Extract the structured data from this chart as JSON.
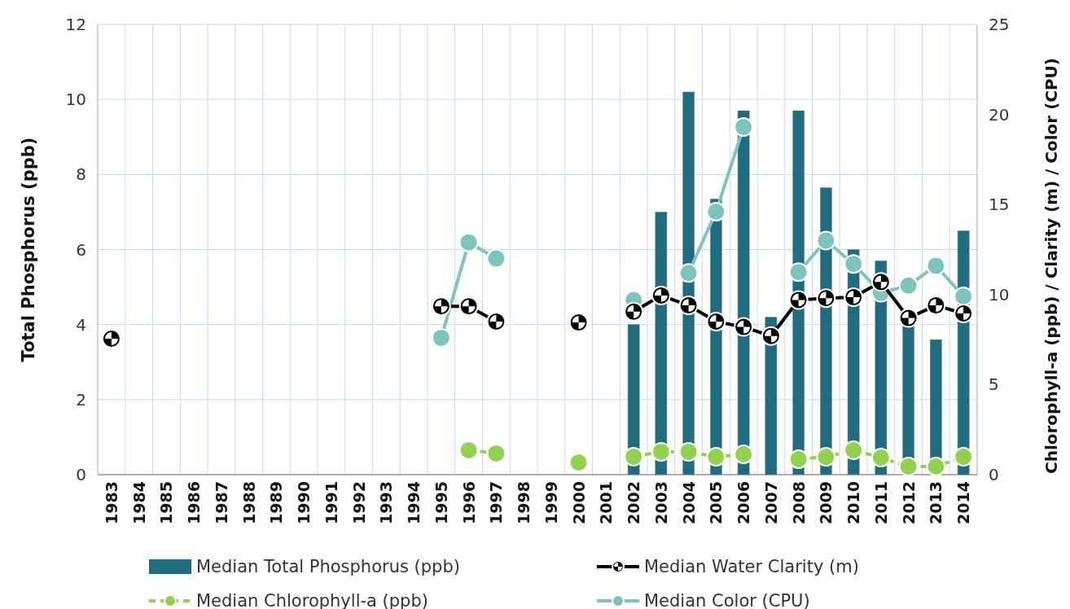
{
  "chart_data": {
    "type": "bar",
    "categories": [
      "1983",
      "1984",
      "1985",
      "1986",
      "1987",
      "1988",
      "1989",
      "1990",
      "1991",
      "1992",
      "1993",
      "1994",
      "1995",
      "1996",
      "1997",
      "1998",
      "1999",
      "2000",
      "2001",
      "2002",
      "2003",
      "2004",
      "2005",
      "2006",
      "2007",
      "2008",
      "2009",
      "2010",
      "2011",
      "2012",
      "2013",
      "2014"
    ],
    "ylabel": "Total Phosphorus (ppb)",
    "y2label": "Chlorophyll-a (ppb) / Clarity (m) / Color (CPU)",
    "ylim": [
      0,
      12
    ],
    "yticks": [
      0,
      2,
      4,
      6,
      8,
      10,
      12
    ],
    "y2lim": [
      0,
      25
    ],
    "y2ticks": [
      0,
      5,
      10,
      15,
      20,
      25
    ],
    "grid": true,
    "legend": "bottom",
    "marker": "circle",
    "series": [
      {
        "name": "Median Total Phosphorus (ppb)",
        "color": "#1f6b80",
        "values": [
          null,
          null,
          null,
          null,
          null,
          null,
          null,
          null,
          null,
          null,
          null,
          null,
          null,
          null,
          null,
          null,
          null,
          null,
          null,
          4.0,
          7.0,
          10.2,
          7.35,
          9.7,
          4.2,
          9.7,
          7.65,
          6.0,
          5.7,
          4.0,
          3.6,
          6.5
        ]
      },
      {
        "name": "Median Water Clarity (m)",
        "type": "line",
        "axis": "y2",
        "color": "#000000",
        "line_style": "solid",
        "values": [
          7.55,
          null,
          null,
          null,
          null,
          null,
          null,
          null,
          null,
          null,
          null,
          null,
          9.35,
          9.35,
          8.5,
          null,
          null,
          8.45,
          null,
          9.05,
          9.95,
          9.4,
          8.5,
          8.2,
          7.7,
          9.7,
          9.8,
          9.85,
          10.7,
          8.7,
          9.4,
          8.95
        ]
      },
      {
        "name": "Median Chlorophyll-a (ppb)",
        "type": "line",
        "axis": "y2",
        "color": "#92d050",
        "line_style": "dashed",
        "values": [
          null,
          null,
          null,
          null,
          null,
          null,
          null,
          null,
          null,
          null,
          null,
          null,
          null,
          1.36,
          1.18,
          null,
          null,
          0.68,
          null,
          1.0,
          1.27,
          1.27,
          0.99,
          1.13,
          null,
          0.86,
          0.99,
          1.36,
          0.95,
          0.45,
          0.45,
          0.99
        ]
      },
      {
        "name": "Median Color (CPU)",
        "type": "line",
        "axis": "y2",
        "color": "#7dc4bc",
        "line_style": "solid",
        "values": [
          null,
          null,
          null,
          null,
          null,
          null,
          null,
          null,
          null,
          null,
          null,
          null,
          7.6,
          12.9,
          12.0,
          null,
          null,
          null,
          null,
          9.7,
          null,
          11.2,
          14.6,
          19.3,
          null,
          11.25,
          13.0,
          11.7,
          10.1,
          10.5,
          11.6,
          9.9
        ]
      }
    ]
  }
}
